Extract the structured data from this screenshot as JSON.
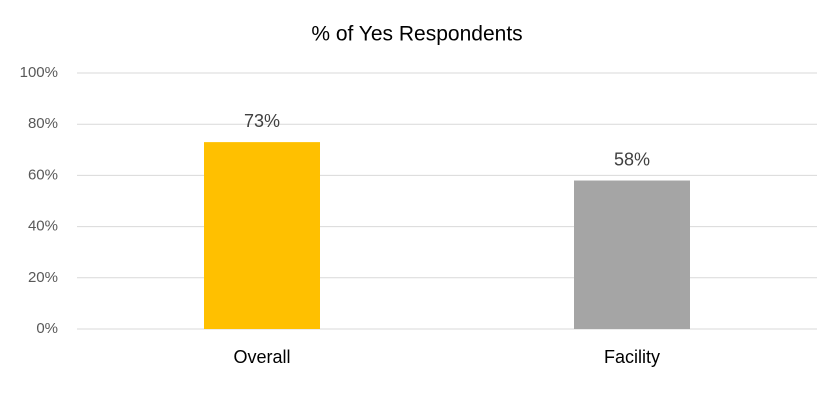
{
  "chart_data": {
    "type": "bar",
    "title": "% of Yes Respondents",
    "categories": [
      "Overall",
      "Facility"
    ],
    "values": [
      73,
      58
    ],
    "value_labels": [
      "73%",
      "58%"
    ],
    "colors": [
      "#ffc000",
      "#a5a5a5"
    ],
    "ylim": [
      0,
      100
    ],
    "yticks": [
      {
        "value": 0,
        "label": "0%"
      },
      {
        "value": 20,
        "label": "20%"
      },
      {
        "value": 40,
        "label": "40%"
      },
      {
        "value": 60,
        "label": "60%"
      },
      {
        "value": 80,
        "label": "80%"
      },
      {
        "value": 100,
        "label": "100%"
      }
    ],
    "grid": true
  }
}
